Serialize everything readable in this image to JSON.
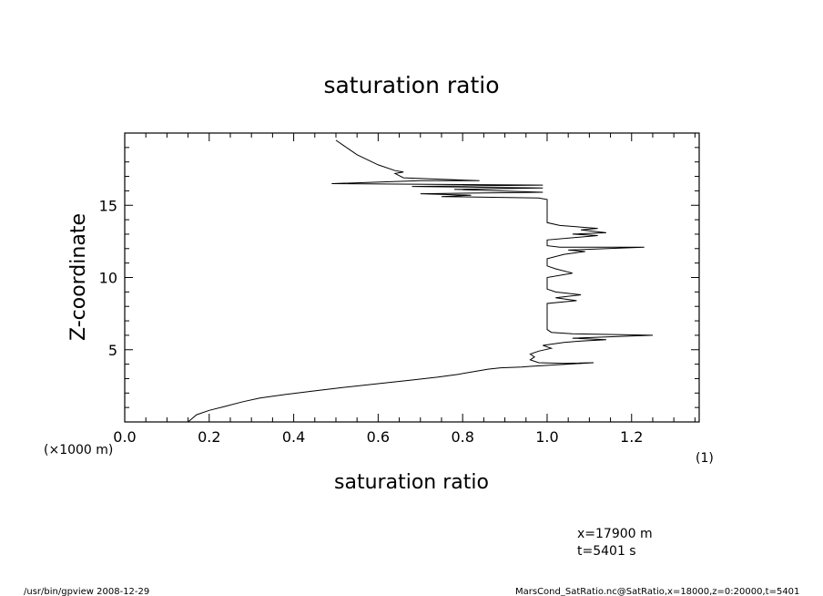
{
  "chart_data": {
    "type": "line",
    "title": "saturation ratio",
    "xlabel": "saturation ratio",
    "ylabel": "Z-coordinate",
    "xlim": [
      0.0,
      1.36
    ],
    "ylim": [
      0,
      20
    ],
    "x_ticks": [
      "0.0",
      "0.2",
      "0.4",
      "0.6",
      "0.8",
      "1.0",
      "1.2"
    ],
    "y_ticks": [
      "5",
      "10",
      "15"
    ],
    "y_unit": "(×1000 m)",
    "x_unit": "(1)",
    "grid": false,
    "series": [
      {
        "points": [
          [
            0.15,
            0.0
          ],
          [
            0.17,
            0.5
          ],
          [
            0.2,
            0.8
          ],
          [
            0.24,
            1.1
          ],
          [
            0.28,
            1.4
          ],
          [
            0.32,
            1.65
          ],
          [
            0.38,
            1.9
          ],
          [
            0.45,
            2.15
          ],
          [
            0.52,
            2.4
          ],
          [
            0.6,
            2.65
          ],
          [
            0.68,
            2.9
          ],
          [
            0.74,
            3.1
          ],
          [
            0.79,
            3.3
          ],
          [
            0.83,
            3.5
          ],
          [
            0.86,
            3.65
          ],
          [
            0.89,
            3.75
          ],
          [
            0.94,
            3.8
          ],
          [
            0.96,
            3.85
          ],
          [
            1.11,
            4.1
          ],
          [
            1.04,
            4.05
          ],
          [
            0.98,
            4.1
          ],
          [
            0.96,
            4.3
          ],
          [
            0.97,
            4.5
          ],
          [
            0.96,
            4.7
          ],
          [
            0.98,
            4.9
          ],
          [
            1.01,
            5.1
          ],
          [
            0.99,
            5.3
          ],
          [
            1.04,
            5.5
          ],
          [
            1.08,
            5.6
          ],
          [
            1.14,
            5.7
          ],
          [
            1.06,
            5.8
          ],
          [
            1.25,
            6.0
          ],
          [
            1.06,
            6.1
          ],
          [
            1.01,
            6.2
          ],
          [
            1.0,
            6.4
          ],
          [
            1.0,
            7.2
          ],
          [
            1.0,
            8.2
          ],
          [
            1.07,
            8.4
          ],
          [
            1.02,
            8.6
          ],
          [
            1.08,
            8.8
          ],
          [
            1.02,
            9.0
          ],
          [
            1.0,
            9.2
          ],
          [
            1.0,
            10.0
          ],
          [
            1.06,
            10.3
          ],
          [
            1.02,
            10.6
          ],
          [
            1.0,
            10.8
          ],
          [
            1.0,
            11.3
          ],
          [
            1.04,
            11.6
          ],
          [
            1.09,
            11.8
          ],
          [
            1.05,
            11.9
          ],
          [
            1.23,
            12.1
          ],
          [
            1.03,
            12.1
          ],
          [
            1.0,
            12.2
          ],
          [
            1.0,
            12.6
          ],
          [
            1.12,
            12.9
          ],
          [
            1.06,
            13.0
          ],
          [
            1.14,
            13.1
          ],
          [
            1.08,
            13.3
          ],
          [
            1.12,
            13.4
          ],
          [
            1.03,
            13.6
          ],
          [
            1.0,
            13.8
          ],
          [
            1.0,
            14.8
          ],
          [
            1.0,
            15.4
          ],
          [
            0.98,
            15.5
          ],
          [
            0.75,
            15.6
          ],
          [
            0.82,
            15.7
          ],
          [
            0.7,
            15.8
          ],
          [
            0.99,
            15.9
          ],
          [
            0.78,
            16.1
          ],
          [
            0.99,
            16.2
          ],
          [
            0.68,
            16.3
          ],
          [
            0.99,
            16.4
          ],
          [
            0.49,
            16.5
          ],
          [
            0.7,
            16.7
          ],
          [
            0.84,
            16.7
          ],
          [
            0.66,
            16.9
          ],
          [
            0.64,
            17.2
          ],
          [
            0.66,
            17.3
          ],
          [
            0.64,
            17.4
          ],
          [
            0.6,
            17.8
          ],
          [
            0.55,
            18.5
          ],
          [
            0.52,
            19.1
          ],
          [
            0.5,
            19.5
          ]
        ]
      }
    ]
  },
  "info": {
    "x_pos": "x=17900  m",
    "time": "t=5401  s"
  },
  "footer": {
    "left": "/usr/bin/gpview   2008-12-29",
    "right": "MarsCond_SatRatio.nc@SatRatio,x=18000,z=0:20000,t=5401"
  }
}
